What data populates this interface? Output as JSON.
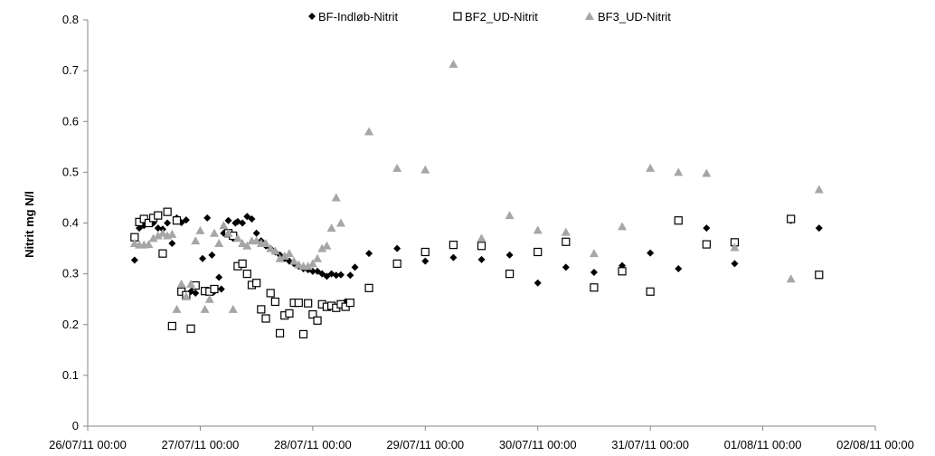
{
  "chart_data": {
    "type": "scatter",
    "title": "",
    "xlabel": "",
    "ylabel": "Nitrit mg N/l",
    "x_ticks": [
      "26/07/11 00:00",
      "27/07/11 00:00",
      "28/07/11 00:00",
      "29/07/11 00:00",
      "30/07/11 00:00",
      "31/07/11 00:00",
      "01/08/11 00:00",
      "02/08/11 00:00"
    ],
    "xlim": [
      "26/07/11 00:00",
      "02/08/11 00:00"
    ],
    "y_ticks": [
      "0",
      "0.1",
      "0.2",
      "0.3",
      "0.4",
      "0.5",
      "0.6",
      "0.7",
      "0.8"
    ],
    "ylim": [
      0,
      0.8
    ],
    "grid": false,
    "legend_position": "top-center",
    "series": [
      {
        "name": "BF-Indløb-Nitrit",
        "marker": "diamond",
        "color": "#000000",
        "points": [
          [
            "26/07/11 10:00",
            0.327
          ],
          [
            "26/07/11 11:00",
            0.39
          ],
          [
            "26/07/11 12:00",
            0.395
          ],
          [
            "26/07/11 13:00",
            0.4
          ],
          [
            "26/07/11 14:00",
            0.4
          ],
          [
            "26/07/11 15:00",
            0.39
          ],
          [
            "26/07/11 16:00",
            0.388
          ],
          [
            "26/07/11 17:00",
            0.4
          ],
          [
            "26/07/11 18:00",
            0.36
          ],
          [
            "26/07/11 19:00",
            0.41
          ],
          [
            "26/07/11 20:00",
            0.401
          ],
          [
            "26/07/11 21:00",
            0.406
          ],
          [
            "26/07/11 22:00",
            0.265
          ],
          [
            "26/07/11 23:00",
            0.262
          ],
          [
            "27/07/11 00:30",
            0.33
          ],
          [
            "27/07/11 01:30",
            0.41
          ],
          [
            "27/07/11 02:30",
            0.337
          ],
          [
            "27/07/11 03:00",
            0.265
          ],
          [
            "27/07/11 04:00",
            0.293
          ],
          [
            "27/07/11 04:30",
            0.27
          ],
          [
            "27/07/11 05:00",
            0.38
          ],
          [
            "27/07/11 06:00",
            0.405
          ],
          [
            "27/07/11 07:00",
            0.37
          ],
          [
            "27/07/11 07:30",
            0.4
          ],
          [
            "27/07/11 08:00",
            0.403
          ],
          [
            "27/07/11 09:00",
            0.4
          ],
          [
            "27/07/11 10:00",
            0.413
          ],
          [
            "27/07/11 11:00",
            0.408
          ],
          [
            "27/07/11 12:00",
            0.38
          ],
          [
            "27/07/11 13:00",
            0.365
          ],
          [
            "27/07/11 14:00",
            0.355
          ],
          [
            "27/07/11 15:00",
            0.35
          ],
          [
            "27/07/11 16:00",
            0.343
          ],
          [
            "27/07/11 17:00",
            0.337
          ],
          [
            "27/07/11 18:00",
            0.33
          ],
          [
            "27/07/11 19:00",
            0.325
          ],
          [
            "27/07/11 20:00",
            0.32
          ],
          [
            "27/07/11 21:00",
            0.315
          ],
          [
            "27/07/11 22:00",
            0.31
          ],
          [
            "27/07/11 23:00",
            0.308
          ],
          [
            "28/07/11 00:00",
            0.305
          ],
          [
            "28/07/11 01:00",
            0.305
          ],
          [
            "28/07/11 02:00",
            0.3
          ],
          [
            "28/07/11 03:00",
            0.295
          ],
          [
            "28/07/11 04:00",
            0.3
          ],
          [
            "28/07/11 05:00",
            0.297
          ],
          [
            "28/07/11 06:00",
            0.298
          ],
          [
            "28/07/11 07:00",
            0.245
          ],
          [
            "28/07/11 08:00",
            0.297
          ],
          [
            "28/07/11 09:00",
            0.313
          ],
          [
            "28/07/11 12:00",
            0.34
          ],
          [
            "28/07/11 18:00",
            0.35
          ],
          [
            "29/07/11 00:00",
            0.325
          ],
          [
            "29/07/11 06:00",
            0.332
          ],
          [
            "29/07/11 12:00",
            0.328
          ],
          [
            "29/07/11 18:00",
            0.337
          ],
          [
            "30/07/11 00:00",
            0.282
          ],
          [
            "30/07/11 06:00",
            0.313
          ],
          [
            "30/07/11 12:00",
            0.303
          ],
          [
            "30/07/11 18:00",
            0.316
          ],
          [
            "31/07/11 00:00",
            0.341
          ],
          [
            "31/07/11 06:00",
            0.31
          ],
          [
            "31/07/11 12:00",
            0.39
          ],
          [
            "31/07/11 18:00",
            0.32
          ],
          [
            "01/08/11 06:00",
            0.405
          ],
          [
            "01/08/11 12:00",
            0.39
          ]
        ]
      },
      {
        "name": "BF2_UD-Nitrit",
        "marker": "square-open",
        "color": "#000000",
        "points": [
          [
            "26/07/11 10:00",
            0.372
          ],
          [
            "26/07/11 11:00",
            0.402
          ],
          [
            "26/07/11 12:00",
            0.408
          ],
          [
            "26/07/11 13:00",
            0.4
          ],
          [
            "26/07/11 14:00",
            0.41
          ],
          [
            "26/07/11 15:00",
            0.415
          ],
          [
            "26/07/11 16:00",
            0.34
          ],
          [
            "26/07/11 17:00",
            0.422
          ],
          [
            "26/07/11 18:00",
            0.197
          ],
          [
            "26/07/11 19:00",
            0.405
          ],
          [
            "26/07/11 20:00",
            0.265
          ],
          [
            "26/07/11 21:00",
            0.258
          ],
          [
            "26/07/11 22:00",
            0.192
          ],
          [
            "26/07/11 23:00",
            0.277
          ],
          [
            "27/07/11 01:00",
            0.266
          ],
          [
            "27/07/11 02:00",
            0.265
          ],
          [
            "27/07/11 03:00",
            0.27
          ],
          [
            "27/07/11 06:00",
            0.38
          ],
          [
            "27/07/11 07:00",
            0.375
          ],
          [
            "27/07/11 08:00",
            0.315
          ],
          [
            "27/07/11 09:00",
            0.32
          ],
          [
            "27/07/11 10:00",
            0.3
          ],
          [
            "27/07/11 11:00",
            0.278
          ],
          [
            "27/07/11 12:00",
            0.282
          ],
          [
            "27/07/11 13:00",
            0.23
          ],
          [
            "27/07/11 14:00",
            0.212
          ],
          [
            "27/07/11 15:00",
            0.262
          ],
          [
            "27/07/11 16:00",
            0.245
          ],
          [
            "27/07/11 17:00",
            0.183
          ],
          [
            "27/07/11 18:00",
            0.218
          ],
          [
            "27/07/11 19:00",
            0.222
          ],
          [
            "27/07/11 20:00",
            0.243
          ],
          [
            "27/07/11 21:00",
            0.243
          ],
          [
            "27/07/11 22:00",
            0.181
          ],
          [
            "27/07/11 23:00",
            0.242
          ],
          [
            "28/07/11 00:00",
            0.22
          ],
          [
            "28/07/11 01:00",
            0.208
          ],
          [
            "28/07/11 02:00",
            0.24
          ],
          [
            "28/07/11 03:00",
            0.235
          ],
          [
            "28/07/11 04:00",
            0.237
          ],
          [
            "28/07/11 05:00",
            0.233
          ],
          [
            "28/07/11 06:00",
            0.24
          ],
          [
            "28/07/11 07:00",
            0.235
          ],
          [
            "28/07/11 08:00",
            0.243
          ],
          [
            "28/07/11 12:00",
            0.272
          ],
          [
            "28/07/11 18:00",
            0.32
          ],
          [
            "29/07/11 00:00",
            0.343
          ],
          [
            "29/07/11 06:00",
            0.357
          ],
          [
            "29/07/11 12:00",
            0.355
          ],
          [
            "29/07/11 18:00",
            0.3
          ],
          [
            "30/07/11 00:00",
            0.343
          ],
          [
            "30/07/11 06:00",
            0.363
          ],
          [
            "30/07/11 12:00",
            0.273
          ],
          [
            "30/07/11 18:00",
            0.305
          ],
          [
            "31/07/11 00:00",
            0.265
          ],
          [
            "31/07/11 06:00",
            0.405
          ],
          [
            "31/07/11 12:00",
            0.358
          ],
          [
            "31/07/11 18:00",
            0.362
          ],
          [
            "01/08/11 06:00",
            0.408
          ],
          [
            "01/08/11 12:00",
            0.298
          ]
        ]
      },
      {
        "name": "BF3_UD-Nitrit",
        "marker": "triangle",
        "color": "#a6a6a6",
        "points": [
          [
            "26/07/11 10:00",
            0.36
          ],
          [
            "26/07/11 11:00",
            0.357
          ],
          [
            "26/07/11 12:00",
            0.357
          ],
          [
            "26/07/11 13:00",
            0.358
          ],
          [
            "26/07/11 14:00",
            0.37
          ],
          [
            "26/07/11 15:00",
            0.375
          ],
          [
            "26/07/11 16:00",
            0.38
          ],
          [
            "26/07/11 17:00",
            0.375
          ],
          [
            "26/07/11 18:00",
            0.378
          ],
          [
            "26/07/11 19:00",
            0.23
          ],
          [
            "26/07/11 20:00",
            0.28
          ],
          [
            "26/07/11 21:00",
            0.255
          ],
          [
            "26/07/11 22:00",
            0.28
          ],
          [
            "26/07/11 23:00",
            0.365
          ],
          [
            "27/07/11 00:00",
            0.385
          ],
          [
            "27/07/11 01:00",
            0.23
          ],
          [
            "27/07/11 02:00",
            0.25
          ],
          [
            "27/07/11 03:00",
            0.38
          ],
          [
            "27/07/11 04:00",
            0.36
          ],
          [
            "27/07/11 05:00",
            0.395
          ],
          [
            "27/07/11 06:00",
            0.38
          ],
          [
            "27/07/11 07:00",
            0.23
          ],
          [
            "27/07/11 08:00",
            0.37
          ],
          [
            "27/07/11 09:00",
            0.36
          ],
          [
            "27/07/11 10:00",
            0.355
          ],
          [
            "27/07/11 11:00",
            0.365
          ],
          [
            "27/07/11 12:00",
            0.365
          ],
          [
            "27/07/11 13:00",
            0.36
          ],
          [
            "27/07/11 14:00",
            0.36
          ],
          [
            "27/07/11 15:00",
            0.35
          ],
          [
            "27/07/11 16:00",
            0.345
          ],
          [
            "27/07/11 17:00",
            0.33
          ],
          [
            "27/07/11 18:00",
            0.335
          ],
          [
            "27/07/11 19:00",
            0.34
          ],
          [
            "27/07/11 20:00",
            0.325
          ],
          [
            "27/07/11 21:00",
            0.318
          ],
          [
            "27/07/11 22:00",
            0.315
          ],
          [
            "27/07/11 23:00",
            0.315
          ],
          [
            "28/07/11 00:00",
            0.32
          ],
          [
            "28/07/11 01:00",
            0.33
          ],
          [
            "28/07/11 02:00",
            0.35
          ],
          [
            "28/07/11 03:00",
            0.355
          ],
          [
            "28/07/11 04:00",
            0.39
          ],
          [
            "28/07/11 05:00",
            0.45
          ],
          [
            "28/07/11 06:00",
            0.4
          ],
          [
            "28/07/11 12:00",
            0.58
          ],
          [
            "28/07/11 18:00",
            0.508
          ],
          [
            "29/07/11 00:00",
            0.505
          ],
          [
            "29/07/11 06:00",
            0.713
          ],
          [
            "29/07/11 12:00",
            0.37
          ],
          [
            "29/07/11 18:00",
            0.415
          ],
          [
            "30/07/11 00:00",
            0.386
          ],
          [
            "30/07/11 06:00",
            0.382
          ],
          [
            "30/07/11 12:00",
            0.34
          ],
          [
            "30/07/11 18:00",
            0.393
          ],
          [
            "31/07/11 00:00",
            0.508
          ],
          [
            "31/07/11 06:00",
            0.5
          ],
          [
            "31/07/11 12:00",
            0.498
          ],
          [
            "31/07/11 18:00",
            0.352
          ],
          [
            "01/08/11 06:00",
            0.29
          ],
          [
            "01/08/11 12:00",
            0.466
          ]
        ]
      }
    ]
  }
}
